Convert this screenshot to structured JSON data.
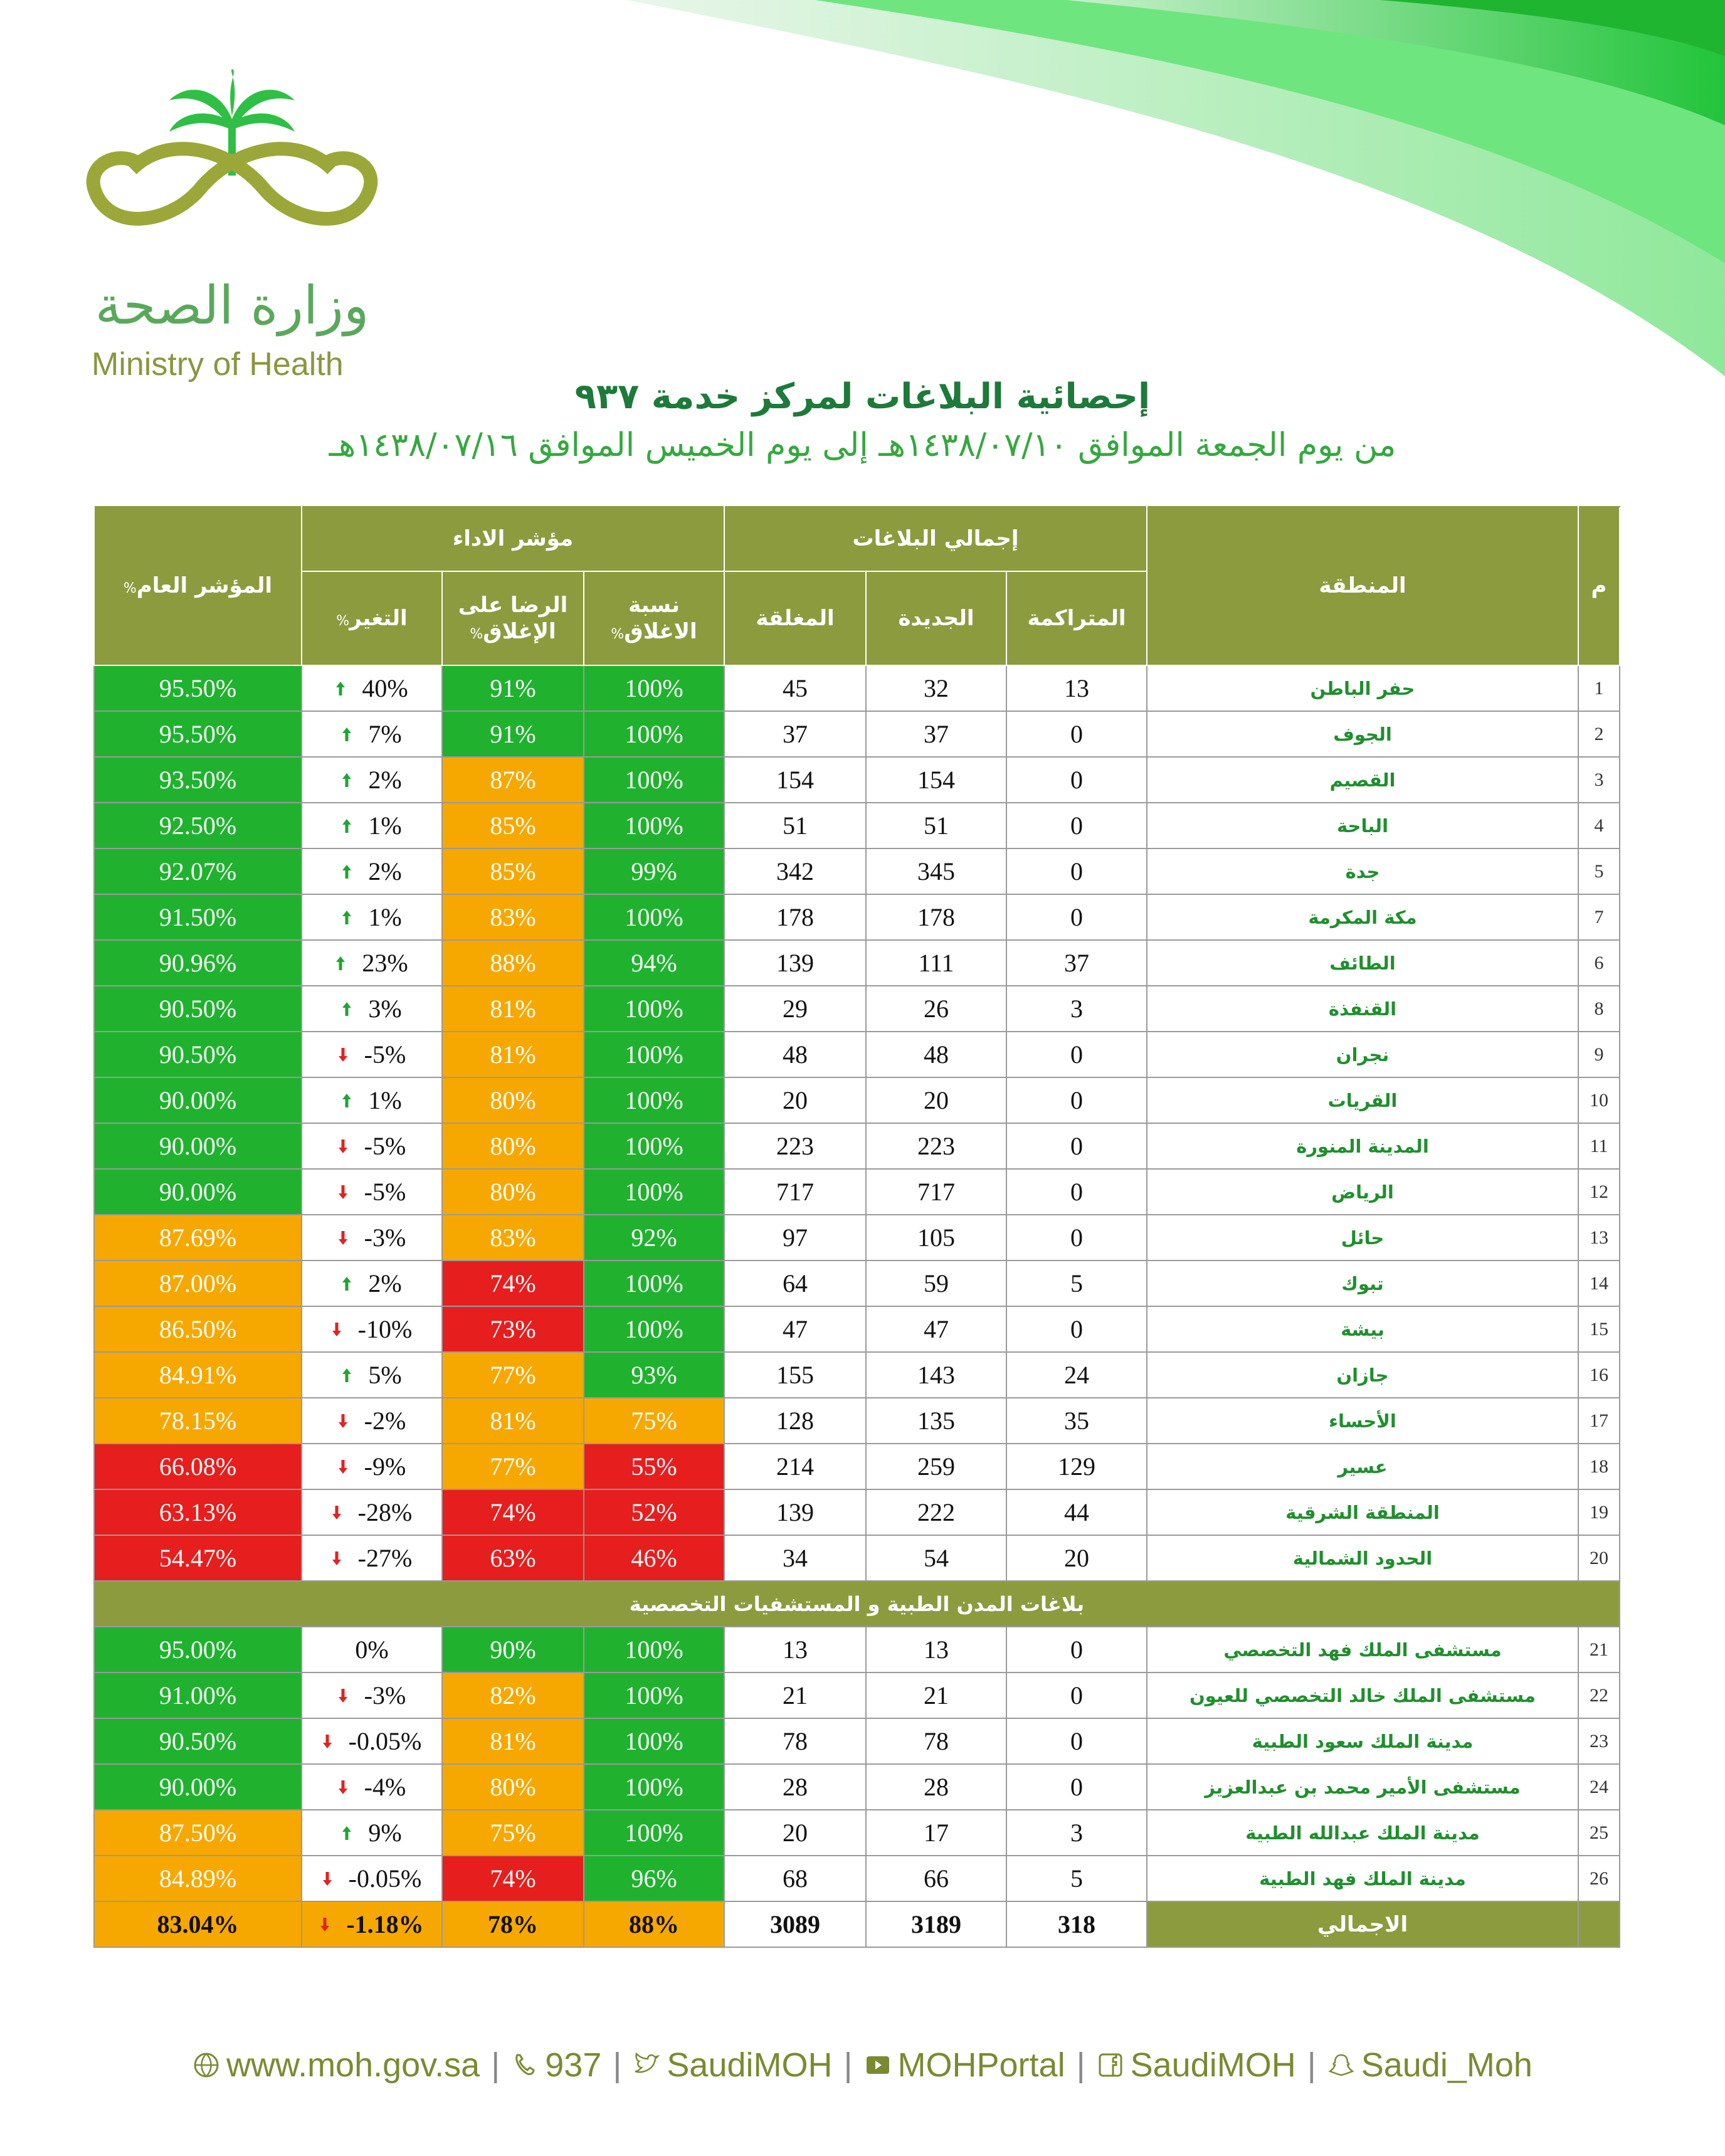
{
  "header": {
    "logo_ar": "وزارة الصحة",
    "logo_en": "Ministry of Health"
  },
  "title": "إحصائية البلاغات لمركز خدمة ٩٣٧",
  "subtitle": "من يوم الجمعة الموافق ١٤٣٨/٠٧/١٠هـ إلى يوم الخميس الموافق ١٤٣٨/٠٧/١٦هـ",
  "palette": {
    "g": "#20b22f",
    "o": "#f6a800",
    "r": "#e61e1e"
  },
  "table": {
    "headers": {
      "no": "م",
      "region": "المنطقة",
      "reports": "إجمالي البلاغات",
      "accumulated": "المتراكمة",
      "new": "الجديدة",
      "closed": "المغلقة",
      "performance": "مؤشر الاداء",
      "closure": {
        "label": "نسبة الاغلاق",
        "unit": "%"
      },
      "satisfaction": {
        "label": "الرضا على الإغلاق",
        "unit": "%"
      },
      "change": {
        "label": "التغير",
        "unit": "%"
      },
      "general": {
        "label": "المؤشر العام",
        "unit": "%"
      }
    },
    "rows": [
      {
        "no": 1,
        "region": "حفر الباطن",
        "accumulated": 13,
        "new": 32,
        "closed": 45,
        "closure": "100%",
        "satisfaction": "91%",
        "change": "40%",
        "trend": "up",
        "general": "95.50%",
        "fills": {
          "closure": "g",
          "satisfaction": "g",
          "general": "g"
        }
      },
      {
        "no": 2,
        "region": "الجوف",
        "accumulated": 0,
        "new": 37,
        "closed": 37,
        "closure": "100%",
        "satisfaction": "91%",
        "change": "7%",
        "trend": "up",
        "general": "95.50%",
        "fills": {
          "closure": "g",
          "satisfaction": "g",
          "general": "g"
        }
      },
      {
        "no": 3,
        "region": "القصيم",
        "accumulated": 0,
        "new": 154,
        "closed": 154,
        "closure": "100%",
        "satisfaction": "87%",
        "change": "2%",
        "trend": "up",
        "general": "93.50%",
        "fills": {
          "closure": "g",
          "satisfaction": "o",
          "general": "g"
        }
      },
      {
        "no": 4,
        "region": "الباحة",
        "accumulated": 0,
        "new": 51,
        "closed": 51,
        "closure": "100%",
        "satisfaction": "85%",
        "change": "1%",
        "trend": "up",
        "general": "92.50%",
        "fills": {
          "closure": "g",
          "satisfaction": "o",
          "general": "g"
        }
      },
      {
        "no": 5,
        "region": "جدة",
        "accumulated": 0,
        "new": 345,
        "closed": 342,
        "closure": "99%",
        "satisfaction": "85%",
        "change": "2%",
        "trend": "up",
        "general": "92.07%",
        "fills": {
          "closure": "g",
          "satisfaction": "o",
          "general": "g"
        }
      },
      {
        "no": 7,
        "region": "مكة المكرمة",
        "accumulated": 0,
        "new": 178,
        "closed": 178,
        "closure": "100%",
        "satisfaction": "83%",
        "change": "1%",
        "trend": "up",
        "general": "91.50%",
        "fills": {
          "closure": "g",
          "satisfaction": "o",
          "general": "g"
        }
      },
      {
        "no": 6,
        "region": "الطائف",
        "accumulated": 37,
        "new": 111,
        "closed": 139,
        "closure": "94%",
        "satisfaction": "88%",
        "change": "23%",
        "trend": "up",
        "general": "90.96%",
        "fills": {
          "closure": "g",
          "satisfaction": "o",
          "general": "g"
        }
      },
      {
        "no": 8,
        "region": "القنفذة",
        "accumulated": 3,
        "new": 26,
        "closed": 29,
        "closure": "100%",
        "satisfaction": "81%",
        "change": "3%",
        "trend": "up",
        "general": "90.50%",
        "fills": {
          "closure": "g",
          "satisfaction": "o",
          "general": "g"
        }
      },
      {
        "no": 9,
        "region": "نجران",
        "accumulated": 0,
        "new": 48,
        "closed": 48,
        "closure": "100%",
        "satisfaction": "81%",
        "change": "-5%",
        "trend": "down",
        "general": "90.50%",
        "fills": {
          "closure": "g",
          "satisfaction": "o",
          "general": "g"
        }
      },
      {
        "no": 10,
        "region": "القريات",
        "accumulated": 0,
        "new": 20,
        "closed": 20,
        "closure": "100%",
        "satisfaction": "80%",
        "change": "1%",
        "trend": "up",
        "general": "90.00%",
        "fills": {
          "closure": "g",
          "satisfaction": "o",
          "general": "g"
        }
      },
      {
        "no": 11,
        "region": "المدينة المنورة",
        "accumulated": 0,
        "new": 223,
        "closed": 223,
        "closure": "100%",
        "satisfaction": "80%",
        "change": "-5%",
        "trend": "down",
        "general": "90.00%",
        "fills": {
          "closure": "g",
          "satisfaction": "o",
          "general": "g"
        }
      },
      {
        "no": 12,
        "region": "الرياض",
        "accumulated": 0,
        "new": 717,
        "closed": 717,
        "closure": "100%",
        "satisfaction": "80%",
        "change": "-5%",
        "trend": "down",
        "general": "90.00%",
        "fills": {
          "closure": "g",
          "satisfaction": "o",
          "general": "g"
        }
      },
      {
        "no": 13,
        "region": "حائل",
        "accumulated": 0,
        "new": 105,
        "closed": 97,
        "closure": "92%",
        "satisfaction": "83%",
        "change": "-3%",
        "trend": "down",
        "general": "87.69%",
        "fills": {
          "closure": "g",
          "satisfaction": "o",
          "general": "o"
        }
      },
      {
        "no": 14,
        "region": "تبوك",
        "accumulated": 5,
        "new": 59,
        "closed": 64,
        "closure": "100%",
        "satisfaction": "74%",
        "change": "2%",
        "trend": "up",
        "general": "87.00%",
        "fills": {
          "closure": "g",
          "satisfaction": "r",
          "general": "o"
        }
      },
      {
        "no": 15,
        "region": "بيشة",
        "accumulated": 0,
        "new": 47,
        "closed": 47,
        "closure": "100%",
        "satisfaction": "73%",
        "change": "-10%",
        "trend": "down",
        "general": "86.50%",
        "fills": {
          "closure": "g",
          "satisfaction": "r",
          "general": "o"
        }
      },
      {
        "no": 16,
        "region": "جازان",
        "accumulated": 24,
        "new": 143,
        "closed": 155,
        "closure": "93%",
        "satisfaction": "77%",
        "change": "5%",
        "trend": "up",
        "general": "84.91%",
        "fills": {
          "closure": "g",
          "satisfaction": "o",
          "general": "o"
        }
      },
      {
        "no": 17,
        "region": "الأحساء",
        "accumulated": 35,
        "new": 135,
        "closed": 128,
        "closure": "75%",
        "satisfaction": "81%",
        "change": "-2%",
        "trend": "down",
        "general": "78.15%",
        "fills": {
          "closure": "o",
          "satisfaction": "o",
          "general": "o"
        }
      },
      {
        "no": 18,
        "region": "عسير",
        "accumulated": 129,
        "new": 259,
        "closed": 214,
        "closure": "55%",
        "satisfaction": "77%",
        "change": "-9%",
        "trend": "down",
        "general": "66.08%",
        "fills": {
          "closure": "r",
          "satisfaction": "o",
          "general": "r"
        }
      },
      {
        "no": 19,
        "region": "المنطقة الشرقية",
        "accumulated": 44,
        "new": 222,
        "closed": 139,
        "closure": "52%",
        "satisfaction": "74%",
        "change": "-28%",
        "trend": "down",
        "general": "63.13%",
        "fills": {
          "closure": "r",
          "satisfaction": "r",
          "general": "r"
        }
      },
      {
        "no": 20,
        "region": "الحدود الشمالية",
        "accumulated": 20,
        "new": 54,
        "closed": 34,
        "closure": "46%",
        "satisfaction": "63%",
        "change": "-27%",
        "trend": "down",
        "general": "54.47%",
        "fills": {
          "closure": "r",
          "satisfaction": "r",
          "general": "r"
        }
      }
    ],
    "section": "بلاغات المدن الطبية و المستشفيات التخصصية",
    "section_rows": [
      {
        "no": 21,
        "region": "مستشفى الملك فهد التخصصي",
        "accumulated": 0,
        "new": 13,
        "closed": 13,
        "closure": "100%",
        "satisfaction": "90%",
        "change": "0%",
        "trend": null,
        "general": "95.00%",
        "fills": {
          "closure": "g",
          "satisfaction": "g",
          "general": "g"
        }
      },
      {
        "no": 22,
        "region": "مستشفى الملك خالد التخصصي للعيون",
        "accumulated": 0,
        "new": 21,
        "closed": 21,
        "closure": "100%",
        "satisfaction": "82%",
        "change": "-3%",
        "trend": "down",
        "general": "91.00%",
        "fills": {
          "closure": "g",
          "satisfaction": "o",
          "general": "g"
        }
      },
      {
        "no": 23,
        "region": "مدينة الملك سعود الطبية",
        "accumulated": 0,
        "new": 78,
        "closed": 78,
        "closure": "100%",
        "satisfaction": "81%",
        "change": "-0.05%",
        "trend": "down",
        "general": "90.50%",
        "fills": {
          "closure": "g",
          "satisfaction": "o",
          "general": "g"
        }
      },
      {
        "no": 24,
        "region": "مستشفى الأمير محمد بن عبدالعزيز",
        "accumulated": 0,
        "new": 28,
        "closed": 28,
        "closure": "100%",
        "satisfaction": "80%",
        "change": "-4%",
        "trend": "down",
        "general": "90.00%",
        "fills": {
          "closure": "g",
          "satisfaction": "o",
          "general": "g"
        }
      },
      {
        "no": 25,
        "region": "مدينة الملك عبدالله الطبية",
        "accumulated": 3,
        "new": 17,
        "closed": 20,
        "closure": "100%",
        "satisfaction": "75%",
        "change": "9%",
        "trend": "up",
        "general": "87.50%",
        "fills": {
          "closure": "g",
          "satisfaction": "o",
          "general": "o"
        }
      },
      {
        "no": 26,
        "region": "مدينة الملك فهد الطبية",
        "accumulated": 5,
        "new": 66,
        "closed": 68,
        "closure": "96%",
        "satisfaction": "74%",
        "change": "-0.05%",
        "trend": "down",
        "general": "84.89%",
        "fills": {
          "closure": "g",
          "satisfaction": "r",
          "general": "o"
        }
      }
    ],
    "total": {
      "region": "الاجمالي",
      "accumulated": 318,
      "new": 3189,
      "closed": 3089,
      "closure": "88%",
      "satisfaction": "78%",
      "change": "-1.18%",
      "trend": "down",
      "general": "83.04%",
      "fills": {
        "closure": "o",
        "satisfaction": "o",
        "change": "o",
        "general": "o"
      }
    }
  },
  "footer": [
    "www.moh.gov.sa",
    "937",
    "SaudiMOH",
    "MOHPortal",
    "SaudiMOH",
    "Saudi_Moh"
  ]
}
